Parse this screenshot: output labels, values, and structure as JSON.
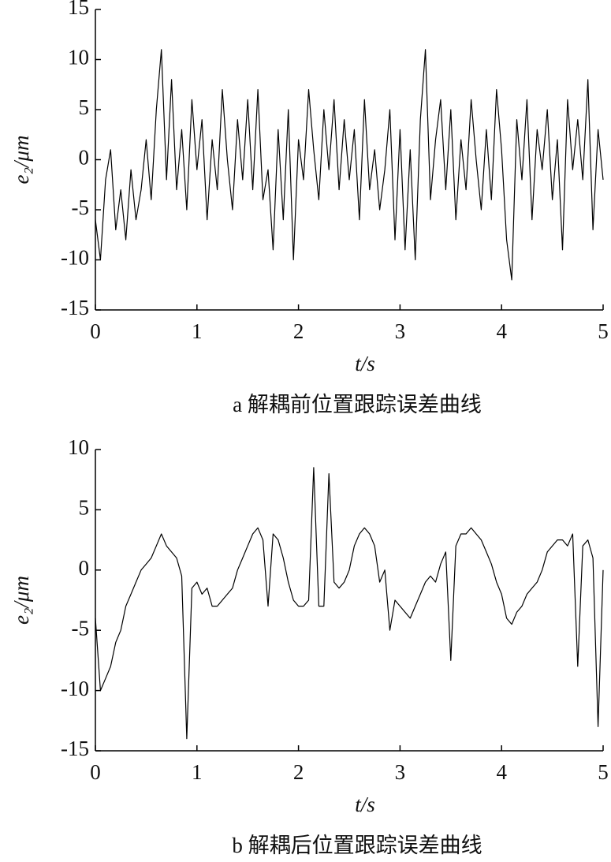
{
  "chart_data": [
    {
      "type": "line",
      "x_label": "t/s",
      "y_label": "e₂/μm",
      "caption": "a 解耦前位置跟踪误差曲线",
      "xlim": [
        0,
        5
      ],
      "xticks": [
        0,
        1,
        2,
        3,
        4,
        5
      ],
      "ylim": [
        -15,
        15
      ],
      "yticks": [
        -15,
        -10,
        -5,
        0,
        5,
        10,
        15
      ],
      "x": [
        0,
        0.05,
        0.1,
        0.15,
        0.2,
        0.25,
        0.3,
        0.35,
        0.4,
        0.45,
        0.5,
        0.55,
        0.6,
        0.65,
        0.7,
        0.75,
        0.8,
        0.85,
        0.9,
        0.95,
        1,
        1.05,
        1.1,
        1.15,
        1.2,
        1.25,
        1.3,
        1.35,
        1.4,
        1.45,
        1.5,
        1.55,
        1.6,
        1.65,
        1.7,
        1.75,
        1.8,
        1.85,
        1.9,
        1.95,
        2,
        2.05,
        2.1,
        2.15,
        2.2,
        2.25,
        2.3,
        2.35,
        2.4,
        2.45,
        2.5,
        2.55,
        2.6,
        2.65,
        2.7,
        2.75,
        2.8,
        2.85,
        2.9,
        2.95,
        3,
        3.05,
        3.1,
        3.15,
        3.2,
        3.25,
        3.3,
        3.35,
        3.4,
        3.45,
        3.5,
        3.55,
        3.6,
        3.65,
        3.7,
        3.75,
        3.8,
        3.85,
        3.9,
        3.95,
        4,
        4.05,
        4.1,
        4.15,
        4.2,
        4.25,
        4.3,
        4.35,
        4.4,
        4.45,
        4.5,
        4.55,
        4.6,
        4.65,
        4.7,
        4.75,
        4.8,
        4.85,
        4.9,
        4.95,
        5
      ],
      "series": [
        {
          "color": "#000000",
          "values": [
            -6,
            -10,
            -2,
            1,
            -7,
            -3,
            -8,
            -1,
            -6,
            -3,
            2,
            -4,
            5,
            11,
            -2,
            8,
            -3,
            3,
            -5,
            6,
            -1,
            4,
            -6,
            2,
            -3,
            7,
            0,
            -5,
            4,
            -2,
            6,
            -3,
            7,
            -4,
            -1,
            -9,
            3,
            -6,
            5,
            -10,
            2,
            -2,
            7,
            1,
            -4,
            5,
            -1,
            6,
            -3,
            4,
            -2,
            3,
            -6,
            6,
            -3,
            1,
            -5,
            -1,
            5,
            -8,
            3,
            -9,
            1,
            -10,
            4,
            11,
            -4,
            2,
            6,
            -3,
            5,
            -6,
            2,
            -3,
            6,
            0,
            -5,
            3,
            -4,
            7,
            1,
            -8,
            -12,
            4,
            -2,
            6,
            -6,
            3,
            -1,
            5,
            -4,
            2,
            -9,
            6,
            -1,
            4,
            -2,
            8,
            -7,
            3,
            -2
          ]
        }
      ]
    },
    {
      "type": "line",
      "x_label": "t/s",
      "y_label": "e₂/μm",
      "caption": "b 解耦后位置跟踪误差曲线",
      "xlim": [
        0,
        5
      ],
      "xticks": [
        0,
        1,
        2,
        3,
        4,
        5
      ],
      "ylim": [
        -15,
        10
      ],
      "yticks": [
        -15,
        -10,
        -5,
        0,
        5,
        10
      ],
      "x": [
        0,
        0.05,
        0.1,
        0.15,
        0.2,
        0.25,
        0.3,
        0.35,
        0.4,
        0.45,
        0.5,
        0.55,
        0.6,
        0.65,
        0.7,
        0.75,
        0.8,
        0.85,
        0.9,
        0.95,
        1,
        1.05,
        1.1,
        1.15,
        1.2,
        1.25,
        1.3,
        1.35,
        1.4,
        1.45,
        1.5,
        1.55,
        1.6,
        1.65,
        1.7,
        1.75,
        1.8,
        1.85,
        1.9,
        1.95,
        2,
        2.05,
        2.1,
        2.15,
        2.2,
        2.25,
        2.3,
        2.35,
        2.4,
        2.45,
        2.5,
        2.55,
        2.6,
        2.65,
        2.7,
        2.75,
        2.8,
        2.85,
        2.9,
        2.95,
        3,
        3.05,
        3.1,
        3.15,
        3.2,
        3.25,
        3.3,
        3.35,
        3.4,
        3.45,
        3.5,
        3.55,
        3.6,
        3.65,
        3.7,
        3.75,
        3.8,
        3.85,
        3.9,
        3.95,
        4,
        4.05,
        4.1,
        4.15,
        4.2,
        4.25,
        4.3,
        4.35,
        4.4,
        4.45,
        4.5,
        4.55,
        4.6,
        4.65,
        4.7,
        4.75,
        4.8,
        4.85,
        4.9,
        4.95,
        5
      ],
      "series": [
        {
          "color": "#000000",
          "values": [
            -4,
            -10,
            -9,
            -8,
            -6,
            -5,
            -3,
            -2,
            -1,
            0,
            0.5,
            1,
            2,
            3,
            2,
            1.5,
            1,
            -0.5,
            -14,
            -1.5,
            -1,
            -2,
            -1.5,
            -3,
            -3,
            -2.5,
            -2,
            -1.5,
            0,
            1,
            2,
            3,
            3.5,
            2.5,
            -3,
            3,
            2.5,
            1,
            -1,
            -2.5,
            -3,
            -3,
            -2.5,
            8.5,
            -3,
            -3,
            8,
            -1,
            -1.5,
            -1,
            0,
            2,
            3,
            3.5,
            3,
            2,
            -1,
            0,
            -5,
            -2.5,
            -3,
            -3.5,
            -4,
            -3,
            -2,
            -1,
            -0.5,
            -1,
            0.5,
            1.5,
            -7.5,
            2,
            3,
            3,
            3.5,
            3,
            2.5,
            1.5,
            0.5,
            -1,
            -2,
            -4,
            -4.5,
            -3.5,
            -3,
            -2,
            -1.5,
            -1,
            0,
            1.5,
            2,
            2.5,
            2.5,
            2,
            3,
            -8,
            2,
            2.5,
            1,
            -13,
            0
          ]
        }
      ]
    }
  ]
}
